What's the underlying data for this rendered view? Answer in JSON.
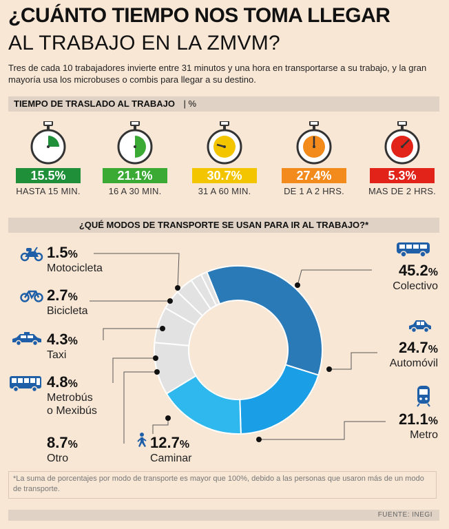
{
  "header": {
    "title_line1": "¿CUÁNTO TIEMPO NOS TOMA LLEGAR",
    "title_line2": "AL TRABAJO EN LA ZMVM?",
    "subtitle": "Tres de cada 10 trabajadores invierte entre 31 minutos y una hora en transportarse a su trabajo, y la gran mayoría usa los microbuses o combis para llegar a su destino."
  },
  "travel_time_section": {
    "title": "TIEMPO DE TRASLADO AL TRABAJO",
    "unit": "| %"
  },
  "timers": [
    {
      "value": "15.5%",
      "label": "HASTA 15 MIN.",
      "color": "#1f8f3a",
      "fill_fraction": 0.25
    },
    {
      "value": "21.1%",
      "label": "16 A 30 MIN.",
      "color": "#3aaa35",
      "fill_fraction": 0.5
    },
    {
      "value": "30.7%",
      "label": "31 A 60 MIN.",
      "color": "#f2c500",
      "fill_fraction": 1.0
    },
    {
      "value": "27.4%",
      "label": "DE 1 A 2 HRS.",
      "color": "#f28a1c",
      "fill_fraction": 1.0
    },
    {
      "value": "5.3%",
      "label": "MAS DE 2 HRS.",
      "color": "#e2231a",
      "fill_fraction": 1.0
    }
  ],
  "modes_section": {
    "title": "¿QUÉ MODOS DE TRANSPORTE SE USAN PARA IR AL TRABAJO?*"
  },
  "chart_data": {
    "type": "pie",
    "style": "donut",
    "title": "¿QUÉ MODOS DE TRANSPORTE SE USAN PARA IR AL TRABAJO?*",
    "unit": "%",
    "slices": [
      {
        "name": "Colectivo",
        "value": 45.2,
        "color": "#2b7ab8",
        "icon": "minibus-icon"
      },
      {
        "name": "Automóvil",
        "value": 24.7,
        "color": "#1a9ee6",
        "icon": "car-icon"
      },
      {
        "name": "Metro",
        "value": 21.1,
        "color": "#2fb8ee",
        "icon": "metro-icon"
      },
      {
        "name": "Caminar",
        "value": 12.7,
        "color": "#e2e2e2",
        "icon": "walking-person-icon"
      },
      {
        "name": "Otro",
        "value": 8.7,
        "color": "#e2e2e2",
        "icon": ""
      },
      {
        "name": "Metrobús o Mexibús",
        "value": 4.8,
        "color": "#e2e2e2",
        "icon": "bus-icon"
      },
      {
        "name": "Taxi",
        "value": 4.3,
        "color": "#e2e2e2",
        "icon": "taxi-icon"
      },
      {
        "name": "Bicicleta",
        "value": 2.7,
        "color": "#e2e2e2",
        "icon": "bicycle-icon"
      },
      {
        "name": "Motocicleta",
        "value": 1.5,
        "color": "#e2e2e2",
        "icon": "motorcycle-icon"
      }
    ]
  },
  "labels": {
    "colectivo": {
      "pct": "45.2",
      "name": "Colectivo"
    },
    "automovil": {
      "pct": "24.7",
      "name": "Automóvil"
    },
    "metro": {
      "pct": "21.1",
      "name": "Metro"
    },
    "caminar": {
      "pct": "12.7",
      "name": "Caminar"
    },
    "otro": {
      "pct": "8.7",
      "name": "Otro"
    },
    "metrobus": {
      "pct": "4.8",
      "name_line1": "Metrobús",
      "name_line2": "o Mexibús"
    },
    "taxi": {
      "pct": "4.3",
      "name": "Taxi"
    },
    "bicicleta": {
      "pct": "2.7",
      "name": "Bicicleta"
    },
    "motocicleta": {
      "pct": "1.5",
      "name": "Motocicleta"
    },
    "percent_sign": "%"
  },
  "footnote": "*La suma de porcentajes por modo de transporte es mayor que 100%, debido a las  personas que usaron más de un  modo  de transporte.",
  "source": "FUENTE: INEGI",
  "colors": {
    "background": "#f9e7d6",
    "section_bar": "#e0d2c4",
    "icon_blue": "#1f5fa8",
    "gray_slice": "#e2e2e2"
  }
}
